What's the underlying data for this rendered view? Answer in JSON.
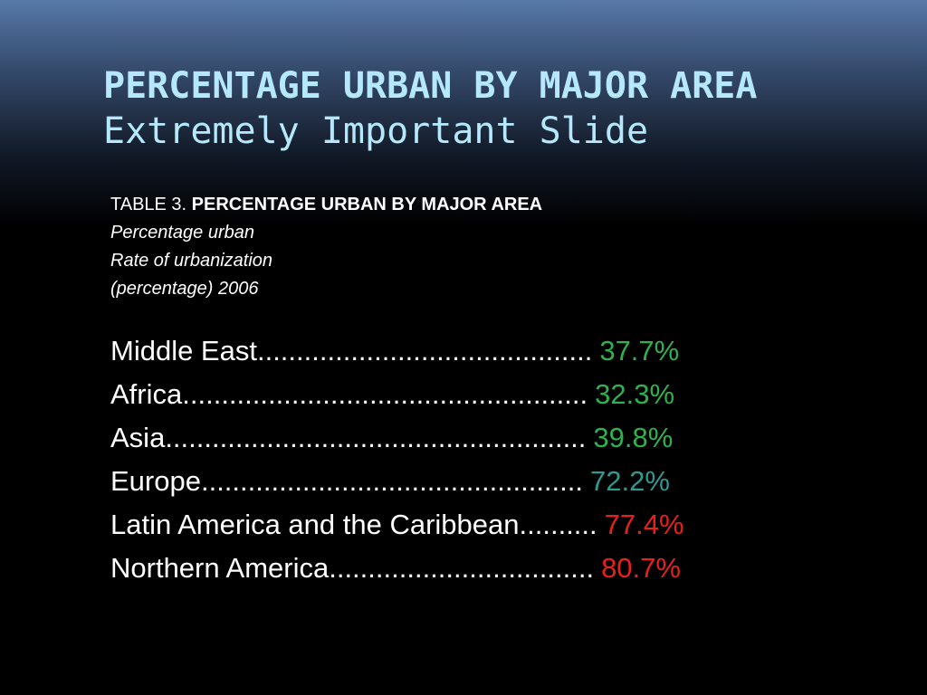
{
  "slide": {
    "title": "PERCENTAGE URBAN BY MAJOR AREA",
    "subtitle": "Extremely Important Slide"
  },
  "caption": {
    "prefix": "TABLE 3. ",
    "heading": "PERCENTAGE URBAN BY MAJOR AREA",
    "line1": "Percentage urban",
    "line2": "Rate of urbanization",
    "line3": "(percentage) 2006"
  },
  "rows": [
    {
      "region": "Middle East",
      "leader": "...........................................",
      "value": "37.7%",
      "color": "#2fb24e"
    },
    {
      "region": "Africa",
      "leader": "....................................................",
      "value": "32.3%",
      "color": "#2fb24e"
    },
    {
      "region": "Asia ",
      "leader": "......................................................",
      "value": "39.8%",
      "color": "#2fb24e"
    },
    {
      "region": "Europe ",
      "leader": ".................................................",
      "value": "72.2%",
      "color": "#2e9a92"
    },
    {
      "region": "Latin America and the Caribbean",
      "leader": "..........",
      "value": "77.4%",
      "color": "#e8201c"
    },
    {
      "region": "Northern America",
      "leader": "..................................",
      "value": "80.7%",
      "color": "#e8201c"
    }
  ]
}
